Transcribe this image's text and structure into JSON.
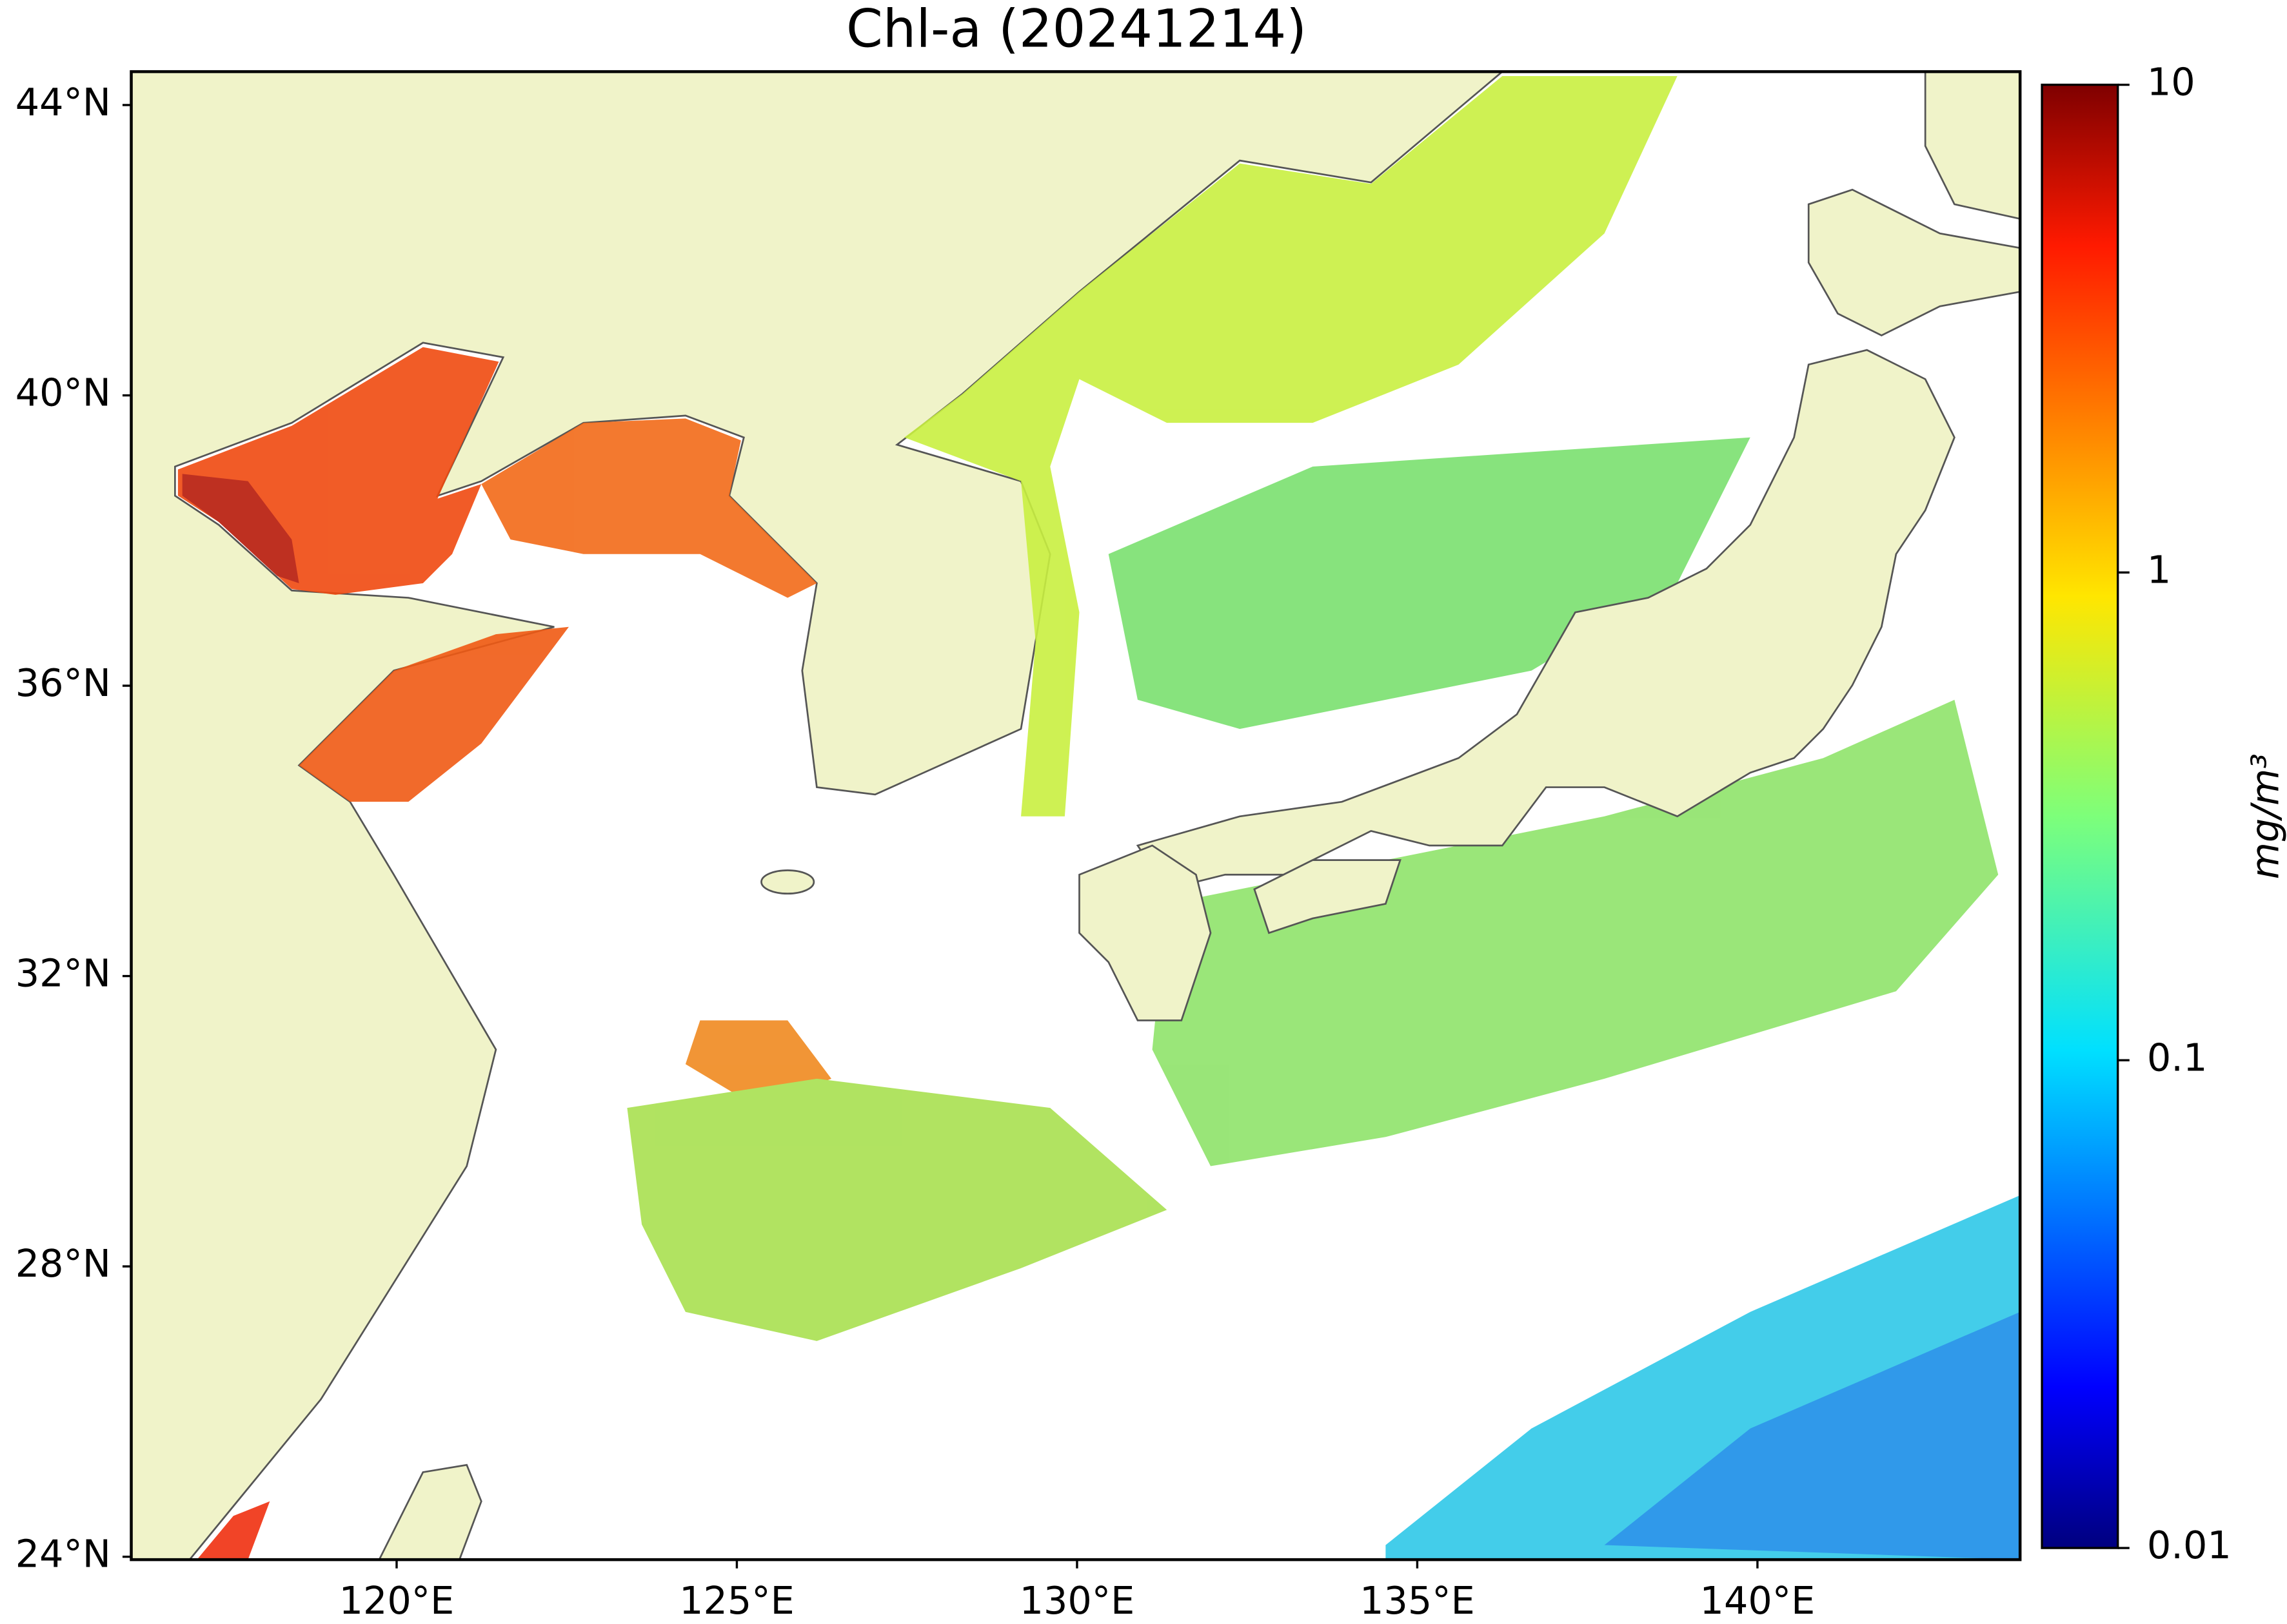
{
  "chart_data": {
    "type": "map",
    "title": "Chl-a (20241214)",
    "xlim": [
      116.1,
      143.86
    ],
    "ylim": [
      23.96,
      44.46
    ],
    "xticks": [
      {
        "value": 120,
        "label": "120°E"
      },
      {
        "value": 125,
        "label": "125°E"
      },
      {
        "value": 130,
        "label": "130°E"
      },
      {
        "value": 135,
        "label": "135°E"
      },
      {
        "value": 140,
        "label": "140°E"
      }
    ],
    "yticks": [
      {
        "value": 24,
        "label": "24°N"
      },
      {
        "value": 28,
        "label": "28°N"
      },
      {
        "value": 32,
        "label": "32°N"
      },
      {
        "value": 36,
        "label": "36°N"
      },
      {
        "value": 40,
        "label": "40°N"
      },
      {
        "value": 44,
        "label": "44°N"
      }
    ],
    "colorbar": {
      "label": "mg/m³",
      "colormap": "jet",
      "scale": "log",
      "lim": [
        0.01,
        10
      ],
      "ticks": [
        0.01,
        0.1,
        1,
        10
      ]
    }
  }
}
